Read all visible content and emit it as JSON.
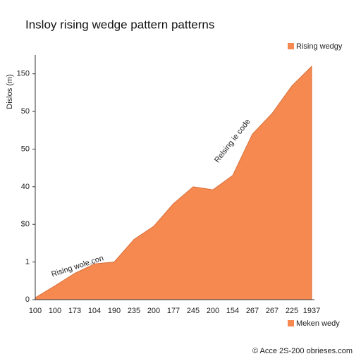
{
  "chart_data": {
    "type": "area",
    "title": "Insloy rising wedge pattern patterns",
    "ylabel": "Dislos (m)",
    "categories": [
      "100",
      "100",
      "173",
      "104",
      "190",
      "235",
      "200",
      "177",
      "245",
      "200",
      "154",
      "267",
      "267",
      "225",
      "1937"
    ],
    "series": [
      {
        "name": "Rising wedgy",
        "color": "#f5894f",
        "values": [
          0.05,
          0.37,
          0.7,
          0.95,
          1.0,
          1.6,
          1.95,
          2.55,
          3.0,
          2.92,
          3.3,
          4.4,
          4.95,
          5.68,
          6.2
        ]
      }
    ],
    "ylim": [
      0,
      6.5
    ],
    "yticks": [
      {
        "value": 0,
        "label": "0"
      },
      {
        "value": 1,
        "label": "1"
      },
      {
        "value": 2,
        "label": "$0"
      },
      {
        "value": 3,
        "label": "40"
      },
      {
        "value": 4,
        "label": "50"
      },
      {
        "value": 5,
        "label": "50"
      },
      {
        "value": 6,
        "label": "150"
      }
    ],
    "annotations": [
      "Rising wole.con",
      "Relsing ie code"
    ],
    "legend_bottom": "Meken wedy",
    "footer": "© Acce 2S-200 obrieses.com",
    "legend": "upper right"
  }
}
